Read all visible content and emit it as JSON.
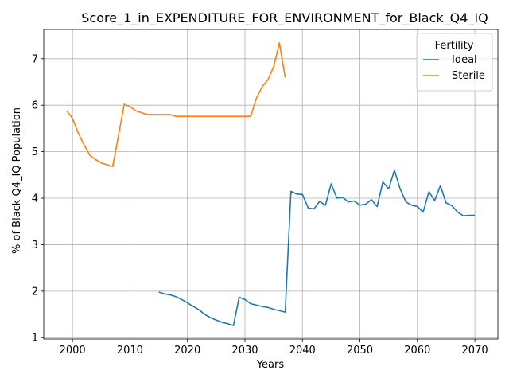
{
  "chart_data": {
    "type": "line",
    "title": "Score_1_in_EXPENDITURE_FOR_ENVIRONMENT_for_Black_Q4_IQ",
    "xlabel": "Years",
    "ylabel": "% of Black Q4_IQ Population",
    "xlim": [
      1995,
      2074
    ],
    "ylim": [
      0.97,
      7.63
    ],
    "xticks": [
      2000,
      2010,
      2020,
      2030,
      2040,
      2050,
      2060,
      2070
    ],
    "yticks": [
      1,
      2,
      3,
      4,
      5,
      6,
      7
    ],
    "grid": true,
    "legend": {
      "title": "Fertility",
      "position": "top-right"
    },
    "series": [
      {
        "name": "Ideal",
        "color": "#1f77b4",
        "x": [
          2015,
          2016,
          2017,
          2018,
          2019,
          2020,
          2021,
          2022,
          2023,
          2024,
          2025,
          2026,
          2027,
          2028,
          2029,
          2030,
          2031,
          2032,
          2033,
          2034,
          2035,
          2036,
          2037,
          2038,
          2039,
          2040,
          2041,
          2042,
          2043,
          2044,
          2045,
          2046,
          2047,
          2048,
          2049,
          2050,
          2051,
          2052,
          2053,
          2054,
          2055,
          2056,
          2057,
          2058,
          2059,
          2060,
          2061,
          2062,
          2063,
          2064,
          2065,
          2066,
          2067,
          2068,
          2069,
          2070
        ],
        "y": [
          1.98,
          1.94,
          1.92,
          1.88,
          1.82,
          1.75,
          1.67,
          1.6,
          1.5,
          1.43,
          1.38,
          1.33,
          1.3,
          1.26,
          1.87,
          1.82,
          1.73,
          1.7,
          1.67,
          1.65,
          1.61,
          1.58,
          1.55,
          4.15,
          4.09,
          4.08,
          3.79,
          3.77,
          3.93,
          3.85,
          4.31,
          4.0,
          4.02,
          3.92,
          3.94,
          3.85,
          3.87,
          3.97,
          3.82,
          4.35,
          4.2,
          4.6,
          4.2,
          3.92,
          3.85,
          3.82,
          3.7,
          4.14,
          3.95,
          4.27,
          3.9,
          3.84,
          3.7,
          3.62,
          3.63,
          3.63
        ]
      },
      {
        "name": "Sterile",
        "color": "#ff7f0e",
        "x": [
          1999,
          2000,
          2001,
          2002,
          2003,
          2004,
          2005,
          2006,
          2007,
          2008,
          2009,
          2010,
          2011,
          2012,
          2013,
          2014,
          2015,
          2016,
          2017,
          2018,
          2019,
          2020,
          2021,
          2022,
          2023,
          2024,
          2025,
          2026,
          2027,
          2028,
          2029,
          2030,
          2031,
          2032,
          2033,
          2034,
          2035,
          2036,
          2037
        ],
        "y": [
          5.88,
          5.72,
          5.4,
          5.15,
          4.93,
          4.83,
          4.76,
          4.72,
          4.68,
          5.35,
          6.02,
          5.97,
          5.88,
          5.84,
          5.8,
          5.8,
          5.8,
          5.8,
          5.8,
          5.76,
          5.76,
          5.76,
          5.76,
          5.76,
          5.76,
          5.76,
          5.76,
          5.76,
          5.76,
          5.76,
          5.76,
          5.76,
          5.76,
          6.15,
          6.4,
          6.55,
          6.83,
          7.34,
          6.6
        ]
      }
    ]
  }
}
